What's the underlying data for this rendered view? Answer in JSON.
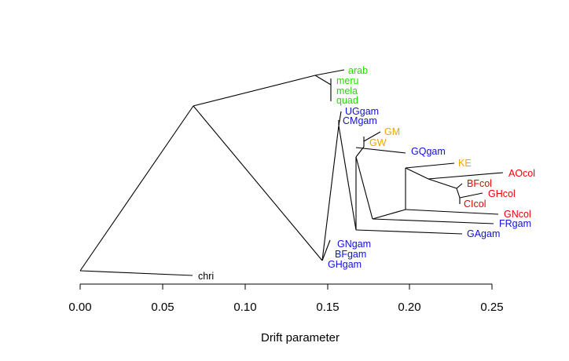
{
  "axis": {
    "label": "Drift parameter",
    "ticks": [
      "0.00",
      "0.05",
      "0.10",
      "0.15",
      "0.20",
      "0.25"
    ],
    "range": [
      0.0,
      0.25
    ]
  },
  "colors": {
    "green": "#22dd00",
    "blue": "#1010dd",
    "orange": "#f5a000",
    "red": "#ee0000",
    "black": "#000000"
  },
  "tips": [
    {
      "label": "arab",
      "drift": 0.16,
      "color": "green"
    },
    {
      "label": "meru",
      "drift": 0.153,
      "color": "green"
    },
    {
      "label": "mela",
      "drift": 0.153,
      "color": "green"
    },
    {
      "label": "quad",
      "drift": 0.153,
      "color": "green"
    },
    {
      "label": "UGgam",
      "drift": 0.158,
      "color": "blue"
    },
    {
      "label": "CMgam",
      "drift": 0.156,
      "color": "blue"
    },
    {
      "label": "GM",
      "drift": 0.182,
      "color": "orange"
    },
    {
      "label": "GW",
      "drift": 0.175,
      "color": "orange"
    },
    {
      "label": "GQgam",
      "drift": 0.2,
      "color": "blue"
    },
    {
      "label": "KE",
      "drift": 0.23,
      "color": "orange"
    },
    {
      "label": "AOcol",
      "drift": 0.257,
      "color": "red"
    },
    {
      "label": "BFcol",
      "drift": 0.233,
      "color": "red"
    },
    {
      "label": "GHcol",
      "drift": 0.245,
      "color": "red"
    },
    {
      "label": "CIcol",
      "drift": 0.231,
      "color": "red"
    },
    {
      "label": "GNcol",
      "drift": 0.255,
      "color": "red"
    },
    {
      "label": "FRgam",
      "drift": 0.251,
      "color": "blue"
    },
    {
      "label": "GAgam",
      "drift": 0.23,
      "color": "blue"
    },
    {
      "label": "GNgam",
      "drift": 0.152,
      "color": "blue"
    },
    {
      "label": "BFgam",
      "drift": 0.151,
      "color": "blue"
    },
    {
      "label": "GHgam",
      "drift": 0.149,
      "color": "blue"
    },
    {
      "label": "chri",
      "drift": 0.068,
      "color": "black"
    }
  ]
}
